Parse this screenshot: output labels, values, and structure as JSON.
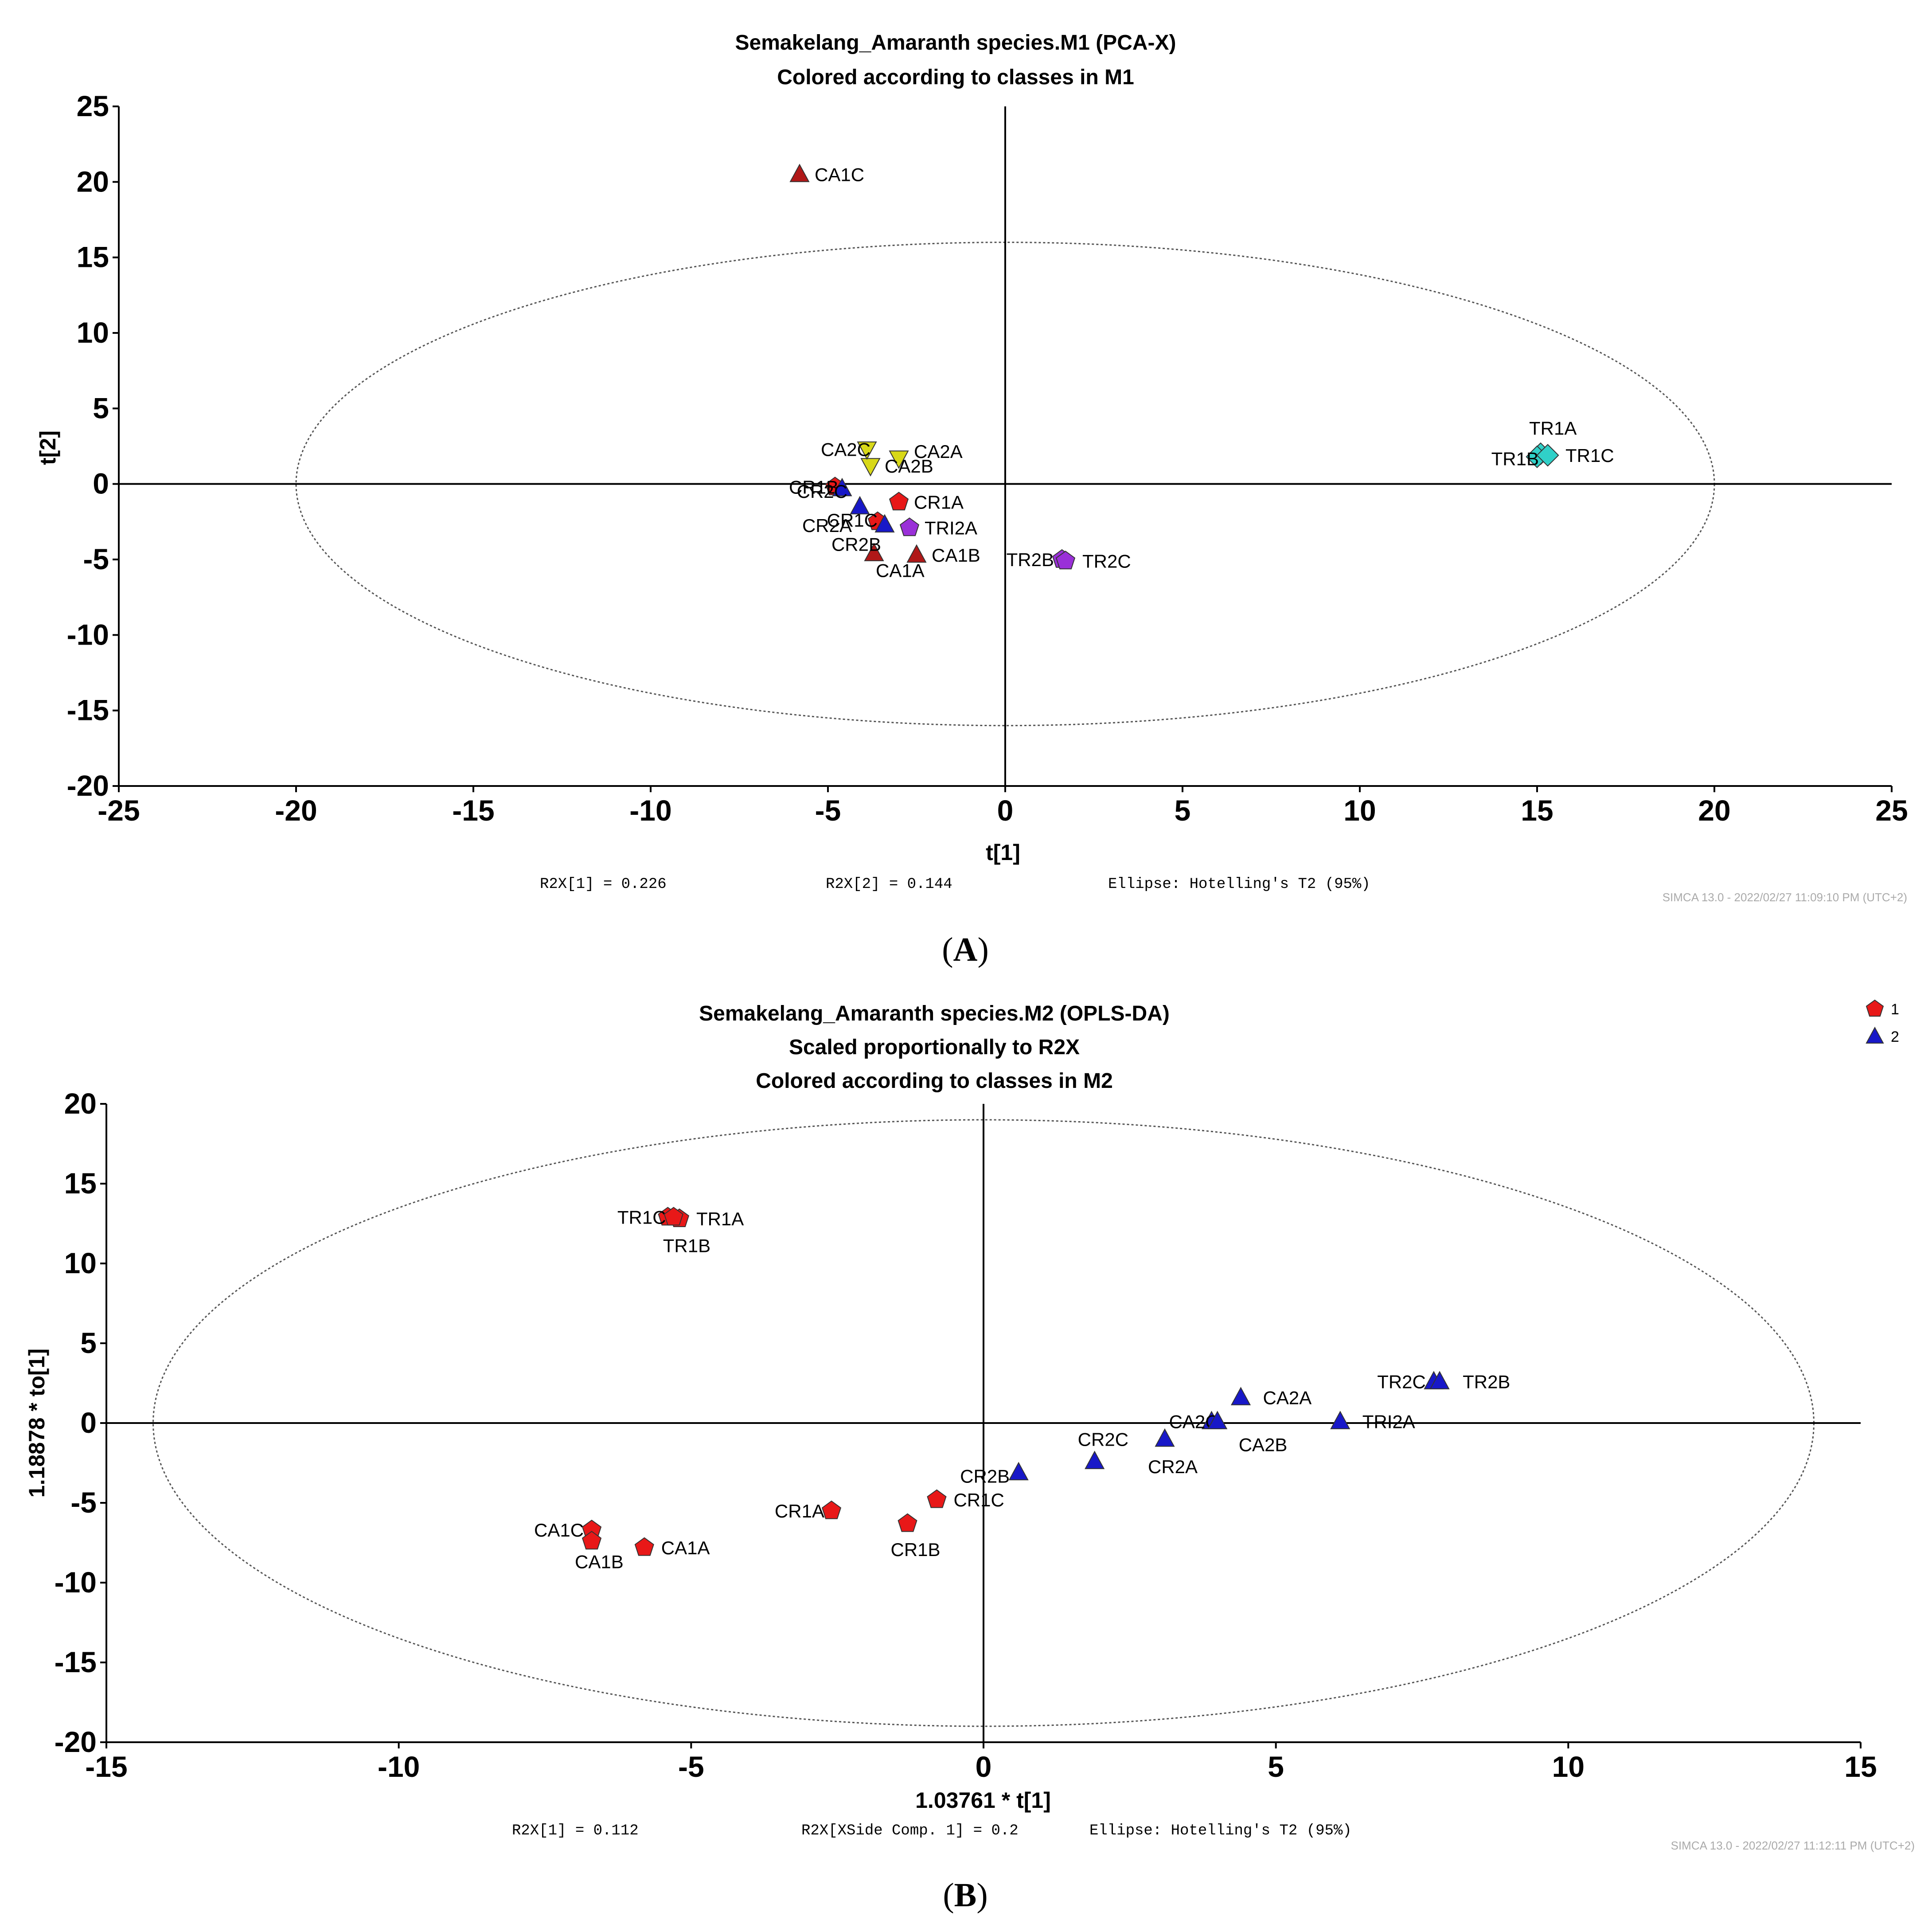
{
  "chart_data": [
    {
      "type": "scatter",
      "panel": "A",
      "title": "Semakelang_Amaranth species.M1 (PCA-X)",
      "subtitle": "Colored according to classes in M1",
      "xlabel": "t[1]",
      "ylabel": "t[2]",
      "xlim": [
        -25,
        25
      ],
      "ylim": [
        -20,
        25
      ],
      "xticks": [
        -25,
        -20,
        -15,
        -10,
        -5,
        0,
        5,
        10,
        15,
        20,
        25
      ],
      "yticks": [
        -20,
        -15,
        -10,
        -5,
        0,
        5,
        10,
        15,
        20,
        25
      ],
      "ellipse": {
        "rx": 20,
        "ry": 16
      },
      "footer": [
        "R2X[1] = 0.226",
        "R2X[2] = 0.144",
        "Ellipse: Hotelling's T2 (95%)"
      ],
      "stamp": "SIMCA 13.0 - 2022/02/27 11:09:10 PM (UTC+2)",
      "colors": {
        "CA1": "#b01818",
        "CA2": "#d8d818",
        "CR1": "#e81818",
        "CR2": "#1818c8",
        "TR1": "#30d0c8",
        "TRI2": "#9a30d8"
      },
      "points": [
        {
          "label": "CA1C",
          "x": -5.8,
          "y": 20.5,
          "shape": "triangle-up",
          "color": "#b01818",
          "lx": 12,
          "ly": 0
        },
        {
          "label": "CA1A",
          "x": -3.7,
          "y": -4.6,
          "shape": "triangle-up",
          "color": "#b01818",
          "lx": -18,
          "ly": 38,
          "anchor": "start"
        },
        {
          "label": "CA1B",
          "x": -2.5,
          "y": -4.7,
          "shape": "triangle-up",
          "color": "#b01818",
          "lx": 12,
          "ly": 0
        },
        {
          "label": "CA2A",
          "x": -3.0,
          "y": 1.7,
          "shape": "triangle-down",
          "color": "#d8d818",
          "lx": 12,
          "ly": -16
        },
        {
          "label": "CA2B",
          "x": -3.8,
          "y": 1.2,
          "shape": "triangle-down",
          "color": "#d8d818",
          "lx": 10,
          "ly": 0
        },
        {
          "label": "CA2C",
          "x": -3.9,
          "y": 2.3,
          "shape": "triangle-down",
          "color": "#d8d818",
          "lx": -14,
          "ly": 0,
          "anchor": "end"
        },
        {
          "label": "CR1A",
          "x": -3.0,
          "y": -1.2,
          "shape": "pentagon",
          "color": "#e81818",
          "lx": 12,
          "ly": 0
        },
        {
          "label": "CR1B",
          "x": -4.8,
          "y": -0.2,
          "shape": "pentagon",
          "color": "#e81818",
          "lx": -14,
          "ly": 0,
          "anchor": "end"
        },
        {
          "label": "CR1C",
          "x": -3.6,
          "y": -2.5,
          "shape": "pentagon",
          "color": "#e81818",
          "lx": -22,
          "ly": -4,
          "anchor": "end"
        },
        {
          "label": "CR2A",
          "x": -4.1,
          "y": -1.5,
          "shape": "triangle-up",
          "color": "#1818c8",
          "lx": -40,
          "ly": 42,
          "anchor": "end"
        },
        {
          "label": "CR2B",
          "x": -3.4,
          "y": -2.7,
          "shape": "triangle-up",
          "color": "#1818c8",
          "lx": -30,
          "ly": 44,
          "anchor": "end"
        },
        {
          "label": "CR2C",
          "x": -4.6,
          "y": -0.3,
          "shape": "triangle-up",
          "color": "#1818c8",
          "lx": -10,
          "ly": 6,
          "anchor": "end"
        },
        {
          "label": "TR1A",
          "x": 15.1,
          "y": 2.0,
          "shape": "diamond",
          "color": "#30d0c8",
          "lx": -48,
          "ly": -58,
          "anchor": "start"
        },
        {
          "label": "TR1B",
          "x": 15.0,
          "y": 1.8,
          "shape": "diamond",
          "color": "#30d0c8",
          "lx": -18,
          "ly": 4,
          "anchor": "end"
        },
        {
          "label": "TR1C",
          "x": 15.3,
          "y": 1.9,
          "shape": "diamond",
          "color": "#30d0c8",
          "lx": 18,
          "ly": 0
        },
        {
          "label": "TRI2A",
          "x": -2.7,
          "y": -2.9,
          "shape": "pentagon",
          "color": "#9a30d8",
          "lx": 12,
          "ly": 0
        },
        {
          "label": "TR2B",
          "x": 1.6,
          "y": -5.0,
          "shape": "pentagon",
          "color": "#9a30d8",
          "lx": -40,
          "ly": 0,
          "anchor": "end"
        },
        {
          "label": "TR2C",
          "x": 1.7,
          "y": -5.1,
          "shape": "pentagon",
          "color": "#9a30d8",
          "lx": 16,
          "ly": 0
        }
      ]
    },
    {
      "type": "scatter",
      "panel": "B",
      "title": "Semakelang_Amaranth species.M2 (OPLS-DA)",
      "subtitle": "Scaled proportionally to R2X",
      "subtitle2": "Colored according to classes in M2",
      "xlabel": "1.03761 * t[1]",
      "ylabel": "1.18878 * to[1]",
      "xlim": [
        -15,
        15
      ],
      "ylim": [
        -20,
        20
      ],
      "xticks": [
        -15,
        -10,
        -5,
        0,
        5,
        10,
        15
      ],
      "yticks": [
        -20,
        -15,
        -10,
        -5,
        0,
        5,
        10,
        15,
        20
      ],
      "ellipse": {
        "rx": 14.2,
        "ry": 19.0
      },
      "footer": [
        "R2X[1] = 0.112",
        "R2X[XSide Comp. 1] = 0.2",
        "Ellipse: Hotelling's T2 (95%)"
      ],
      "stamp": "SIMCA 13.0 - 2022/02/27 11:12:11 PM (UTC+2)",
      "legend": [
        {
          "label": "1",
          "shape": "pentagon",
          "color": "#e81818"
        },
        {
          "label": "2",
          "shape": "triangle-up",
          "color": "#1818c8"
        }
      ],
      "points": [
        {
          "label": "TR1C",
          "x": -5.4,
          "y": 12.9,
          "shape": "pentagon",
          "color": "#e81818",
          "lx": -26,
          "ly": 0,
          "anchor": "end"
        },
        {
          "label": "TR1A",
          "x": -5.2,
          "y": 12.8,
          "shape": "pentagon",
          "color": "#e81818",
          "lx": 16,
          "ly": 0
        },
        {
          "label": "TR1B",
          "x": -5.3,
          "y": 12.9,
          "shape": "pentagon",
          "color": "#e81818",
          "lx": -46,
          "ly": 64,
          "anchor": "start"
        },
        {
          "label": "CA1C",
          "x": -6.7,
          "y": -6.7,
          "shape": "pentagon",
          "color": "#e81818",
          "lx": -40,
          "ly": 0,
          "anchor": "end"
        },
        {
          "label": "CA1B",
          "x": -6.7,
          "y": -7.4,
          "shape": "pentagon",
          "color": "#e81818",
          "lx": -60,
          "ly": 46,
          "anchor": "start"
        },
        {
          "label": "CA1A",
          "x": -5.8,
          "y": -7.8,
          "shape": "pentagon",
          "color": "#e81818",
          "lx": 16,
          "ly": 0
        },
        {
          "label": "CR1A",
          "x": -2.6,
          "y": -5.5,
          "shape": "pentagon",
          "color": "#e81818",
          "lx": -38,
          "ly": 0,
          "anchor": "end"
        },
        {
          "label": "CR1B",
          "x": -1.3,
          "y": -6.3,
          "shape": "pentagon",
          "color": "#e81818",
          "lx": -60,
          "ly": 58,
          "anchor": "start"
        },
        {
          "label": "CR1C",
          "x": -0.8,
          "y": -4.8,
          "shape": "pentagon",
          "color": "#e81818",
          "lx": 16,
          "ly": 0
        },
        {
          "label": "CR2B",
          "x": 0.6,
          "y": -3.1,
          "shape": "triangle-up",
          "color": "#1818c8",
          "lx": -42,
          "ly": 8,
          "anchor": "end"
        },
        {
          "label": "CR2C",
          "x": 1.9,
          "y": -2.4,
          "shape": "triangle-up",
          "color": "#1818c8",
          "lx": -60,
          "ly": -50,
          "anchor": "start"
        },
        {
          "label": "CR2A",
          "x": 3.1,
          "y": -1.0,
          "shape": "triangle-up",
          "color": "#1818c8",
          "lx": -60,
          "ly": 62,
          "anchor": "start"
        },
        {
          "label": "CA2C",
          "x": 3.9,
          "y": 0.1,
          "shape": "triangle-up",
          "color": "#1818c8",
          "lx": -6,
          "ly": 0,
          "anchor": "end"
        },
        {
          "label": "CA2B",
          "x": 4.0,
          "y": 0.1,
          "shape": "triangle-up",
          "color": "#1818c8",
          "lx": 26,
          "ly": 52,
          "anchor": "start"
        },
        {
          "label": "CA2A",
          "x": 4.4,
          "y": 1.6,
          "shape": "triangle-up",
          "color": "#1818c8",
          "lx": 28,
          "ly": 0
        },
        {
          "label": "TRI2A",
          "x": 6.1,
          "y": 0.1,
          "shape": "triangle-up",
          "color": "#1818c8",
          "lx": 28,
          "ly": 0
        },
        {
          "label": "TR2C",
          "x": 7.7,
          "y": 2.6,
          "shape": "triangle-up",
          "color": "#1818c8",
          "lx": -40,
          "ly": 0,
          "anchor": "end"
        },
        {
          "label": "TR2B",
          "x": 7.8,
          "y": 2.6,
          "shape": "triangle-up",
          "color": "#1818c8",
          "lx": 30,
          "ly": 0
        }
      ]
    }
  ]
}
